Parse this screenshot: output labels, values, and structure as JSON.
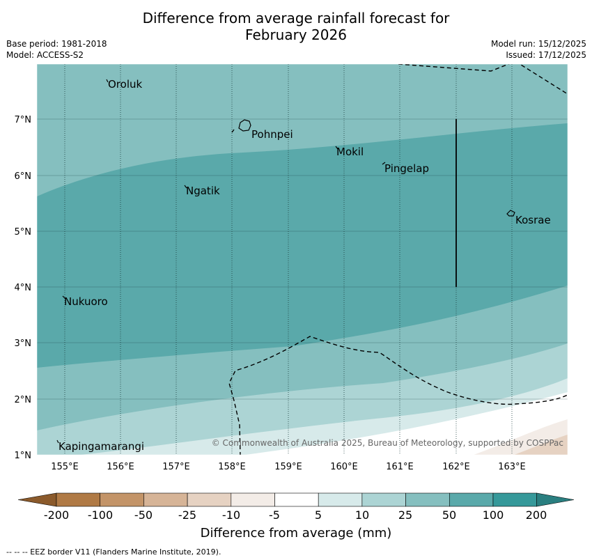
{
  "header": {
    "title_line1": "Difference from average rainfall forecast for",
    "title_line2": "February 2026",
    "base_period": "Base period: 1981-2018",
    "model": "Model: ACCESS-S2",
    "model_run": "Model run: 15/12/2025",
    "issued": "Issued: 17/12/2025"
  },
  "map": {
    "x_ticks": [
      "155°E",
      "156°E",
      "157°E",
      "158°E",
      "159°E",
      "160°E",
      "161°E",
      "162°E",
      "163°E"
    ],
    "y_ticks": [
      "7°N",
      "6°N",
      "5°N",
      "4°N",
      "3°N",
      "2°N",
      "1°N"
    ],
    "places": [
      {
        "name": "Oroluk"
      },
      {
        "name": "Pohnpei"
      },
      {
        "name": "Mokil"
      },
      {
        "name": "Pingelap"
      },
      {
        "name": "Ngatik"
      },
      {
        "name": "Kosrae"
      },
      {
        "name": "Nukuoro"
      },
      {
        "name": "Kapingamarangi"
      }
    ],
    "copyright": "© Commonwealth of Australia 2025, Bureau of Meteorology, supported by COSPPac"
  },
  "colorbar": {
    "ticks": [
      "-200",
      "-100",
      "-50",
      "-25",
      "-10",
      "-5",
      "5",
      "10",
      "25",
      "50",
      "100",
      "200"
    ],
    "colors": [
      "#8b5a2b",
      "#b07a45",
      "#c39468",
      "#d6b497",
      "#e6d2c2",
      "#f3ece7",
      "#ffffff",
      "#d7eaea",
      "#acd4d4",
      "#85bfbf",
      "#5aa9aa",
      "#36999a",
      "#2a7f80"
    ],
    "title": "Difference from average (mm)"
  },
  "footnote": "--  --  -- EEZ border V11 (Flanders Marine Institute, 2019)."
}
